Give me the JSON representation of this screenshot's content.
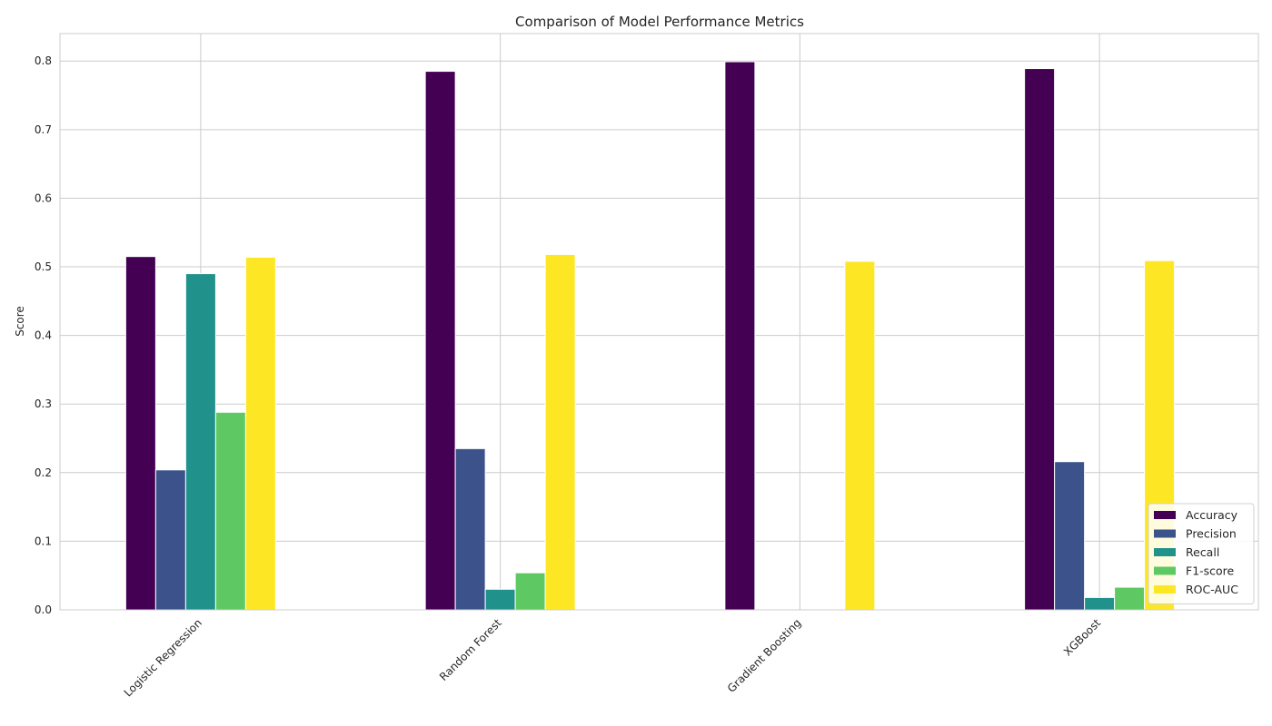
{
  "chart_data": {
    "type": "bar",
    "title": "Comparison of Model Performance Metrics",
    "xlabel": "",
    "ylabel": "Score",
    "categories": [
      "Logistic Regression",
      "Random Forest",
      "Gradient Boosting",
      "XGBoost"
    ],
    "series": [
      {
        "name": "Accuracy",
        "color": "#440154",
        "values": [
          0.515,
          0.785,
          0.799,
          0.789
        ]
      },
      {
        "name": "Precision",
        "color": "#3b528b",
        "values": [
          0.204,
          0.235,
          0.0,
          0.216
        ]
      },
      {
        "name": "Recall",
        "color": "#21918c",
        "values": [
          0.49,
          0.03,
          0.0,
          0.018
        ]
      },
      {
        "name": "F1-score",
        "color": "#5ec962",
        "values": [
          0.288,
          0.054,
          0.0,
          0.033
        ]
      },
      {
        "name": "ROC-AUC",
        "color": "#fde725",
        "values": [
          0.514,
          0.518,
          0.508,
          0.509
        ]
      }
    ],
    "yticks": [
      "0.0",
      "0.1",
      "0.2",
      "0.3",
      "0.4",
      "0.5",
      "0.6",
      "0.7",
      "0.8"
    ],
    "ylim": [
      0,
      0.84
    ],
    "grid": true,
    "legend_position": "bottom-right"
  }
}
